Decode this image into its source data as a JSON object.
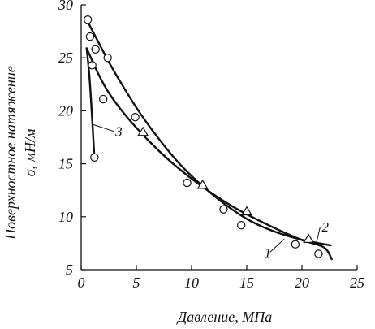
{
  "chart_data": {
    "type": "scatter",
    "title": "",
    "xlabel": "Давление, МПа",
    "ylabel_line1": "Поверхностное натяжение",
    "ylabel_line2": "σ, мН/м",
    "xlim": [
      0,
      25
    ],
    "ylim": [
      5,
      30
    ],
    "x_ticks": [
      0,
      5,
      10,
      15,
      20,
      25
    ],
    "y_ticks": [
      5,
      10,
      15,
      20,
      25,
      30
    ],
    "x_tick_labels": [
      "0",
      "5",
      "10",
      "15",
      "20",
      "25"
    ],
    "y_tick_labels": [
      "5",
      "10",
      "15",
      "20",
      "25",
      "30"
    ],
    "grid": false,
    "legend": "none",
    "series": [
      {
        "name": "1",
        "marker": "circle",
        "curve": [
          [
            0.5,
            25.9
          ],
          [
            1.5,
            23.6
          ],
          [
            2.5,
            21.7
          ],
          [
            4,
            19.6
          ],
          [
            6,
            17.3
          ],
          [
            8,
            15.3
          ],
          [
            10,
            13.6
          ],
          [
            12,
            12.1
          ],
          [
            14,
            10.8
          ],
          [
            16,
            9.7
          ],
          [
            18,
            8.7
          ],
          [
            20,
            7.8
          ],
          [
            22,
            7.1
          ],
          [
            22.7,
            6.0
          ]
        ],
        "points": [
          [
            1.0,
            24.3
          ],
          [
            2.0,
            21.1
          ],
          [
            4.9,
            19.4
          ],
          [
            9.6,
            13.2
          ],
          [
            12.9,
            10.7
          ],
          [
            14.5,
            9.2
          ],
          [
            19.4,
            7.4
          ],
          [
            21.5,
            6.5
          ]
        ]
      },
      {
        "name": "2",
        "marker": "mixed",
        "curve": [
          [
            0.5,
            28.6
          ],
          [
            1,
            27.6
          ],
          [
            2,
            25.6
          ],
          [
            3,
            23.7
          ],
          [
            5,
            20.3
          ],
          [
            7,
            17.4
          ],
          [
            9,
            14.9
          ],
          [
            11,
            12.9
          ],
          [
            13,
            11.2
          ],
          [
            15,
            9.8
          ],
          [
            17,
            8.8
          ],
          [
            19,
            8.1
          ],
          [
            21,
            7.6
          ],
          [
            22.6,
            7.3
          ]
        ],
        "points": [
          [
            0.6,
            28.6
          ],
          [
            0.8,
            27.0
          ],
          [
            1.3,
            25.8
          ],
          [
            2.4,
            25.0
          ]
        ],
        "triangles": [
          [
            5.6,
            18.0
          ],
          [
            11.0,
            13.0
          ],
          [
            15.0,
            10.5
          ],
          [
            20.6,
            7.9
          ]
        ]
      },
      {
        "name": "3",
        "marker": "circle",
        "curve": [
          [
            0.5,
            25.9
          ],
          [
            0.8,
            22.5
          ],
          [
            1.2,
            15.6
          ]
        ],
        "points": [
          [
            1.2,
            15.6
          ]
        ]
      }
    ],
    "annotations": [
      {
        "text": "1",
        "at": [
          16.6,
          6.2
        ],
        "target": [
          18.4,
          7.9
        ]
      },
      {
        "text": "2",
        "at": [
          21.8,
          8.6
        ],
        "target": [
          21.3,
          7.5
        ]
      },
      {
        "text": "3",
        "at": [
          3.1,
          17.6
        ],
        "target": [
          1.1,
          18.7
        ]
      }
    ]
  }
}
